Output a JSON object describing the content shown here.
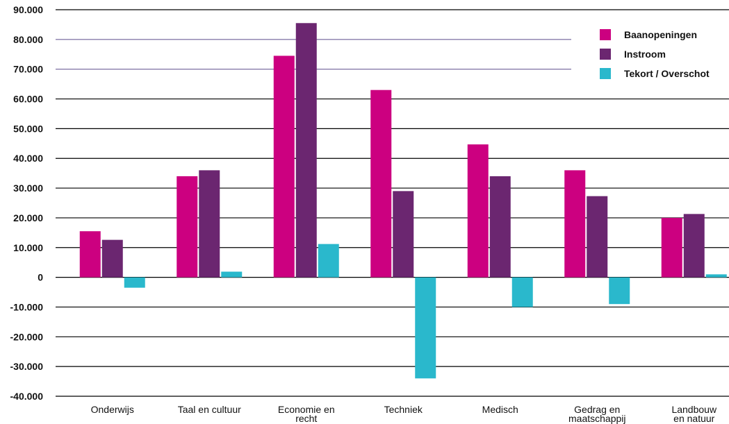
{
  "chart_data": {
    "type": "bar",
    "title": "",
    "xlabel": "",
    "ylabel": "",
    "ylim": [
      -40000,
      90000
    ],
    "yticks": [
      90000,
      80000,
      70000,
      60000,
      50000,
      40000,
      30000,
      20000,
      10000,
      0,
      -10000,
      -20000,
      -30000,
      -40000
    ],
    "ytick_labels": [
      "90.000",
      "80.000",
      "70.000",
      "60.000",
      "50.000",
      "40.000",
      "30.000",
      "20.000",
      "10.000",
      "0",
      "-10.000",
      "-20.000",
      "-30.000",
      "-40.000"
    ],
    "grid": true,
    "legend_position": "top-right",
    "categories": [
      [
        "Onderwijs"
      ],
      [
        "Taal en cultuur"
      ],
      [
        "Economie en",
        "recht"
      ],
      [
        "Techniek"
      ],
      [
        "Medisch"
      ],
      [
        "Gedrag en",
        "maatschappij"
      ],
      [
        "Landbouw",
        "en natuur"
      ]
    ],
    "series": [
      {
        "name": "Baanopeningen",
        "color": "#cc0080",
        "values": [
          15500,
          34000,
          74500,
          63000,
          44700,
          36000,
          20000
        ]
      },
      {
        "name": "Instroom",
        "color": "#6b2670",
        "values": [
          12600,
          36000,
          85500,
          29000,
          34000,
          27300,
          21300
        ]
      },
      {
        "name": "Tekort / Overschot",
        "color": "#2ab8cc",
        "values": [
          -3500,
          1900,
          11200,
          -34000,
          -10000,
          -9000,
          1000
        ]
      }
    ]
  }
}
